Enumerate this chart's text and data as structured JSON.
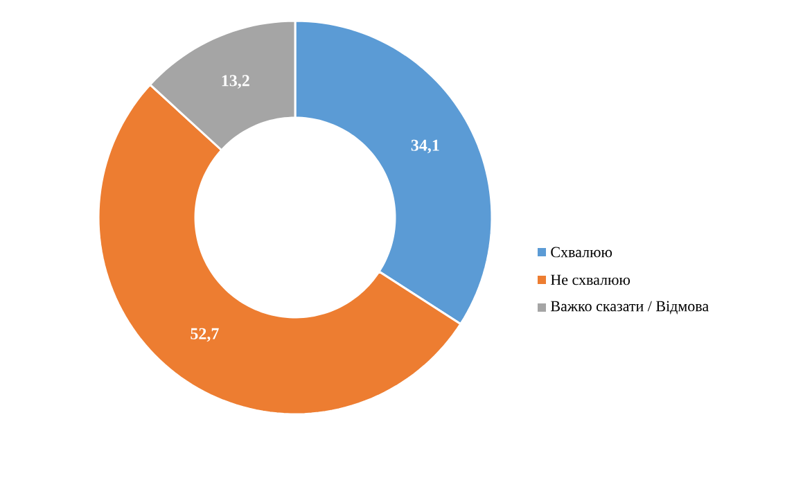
{
  "chart_data": {
    "type": "donut",
    "categories": [
      "Схвалюю",
      "Не схвалюю",
      "Важко сказати / Відмова"
    ],
    "values": [
      34.1,
      52.7,
      13.2
    ],
    "colors": [
      "#5b9bd5",
      "#ed7d31",
      "#a5a5a5"
    ],
    "value_labels": [
      "34,1",
      "52,7",
      "13,2"
    ],
    "legend": "right"
  }
}
